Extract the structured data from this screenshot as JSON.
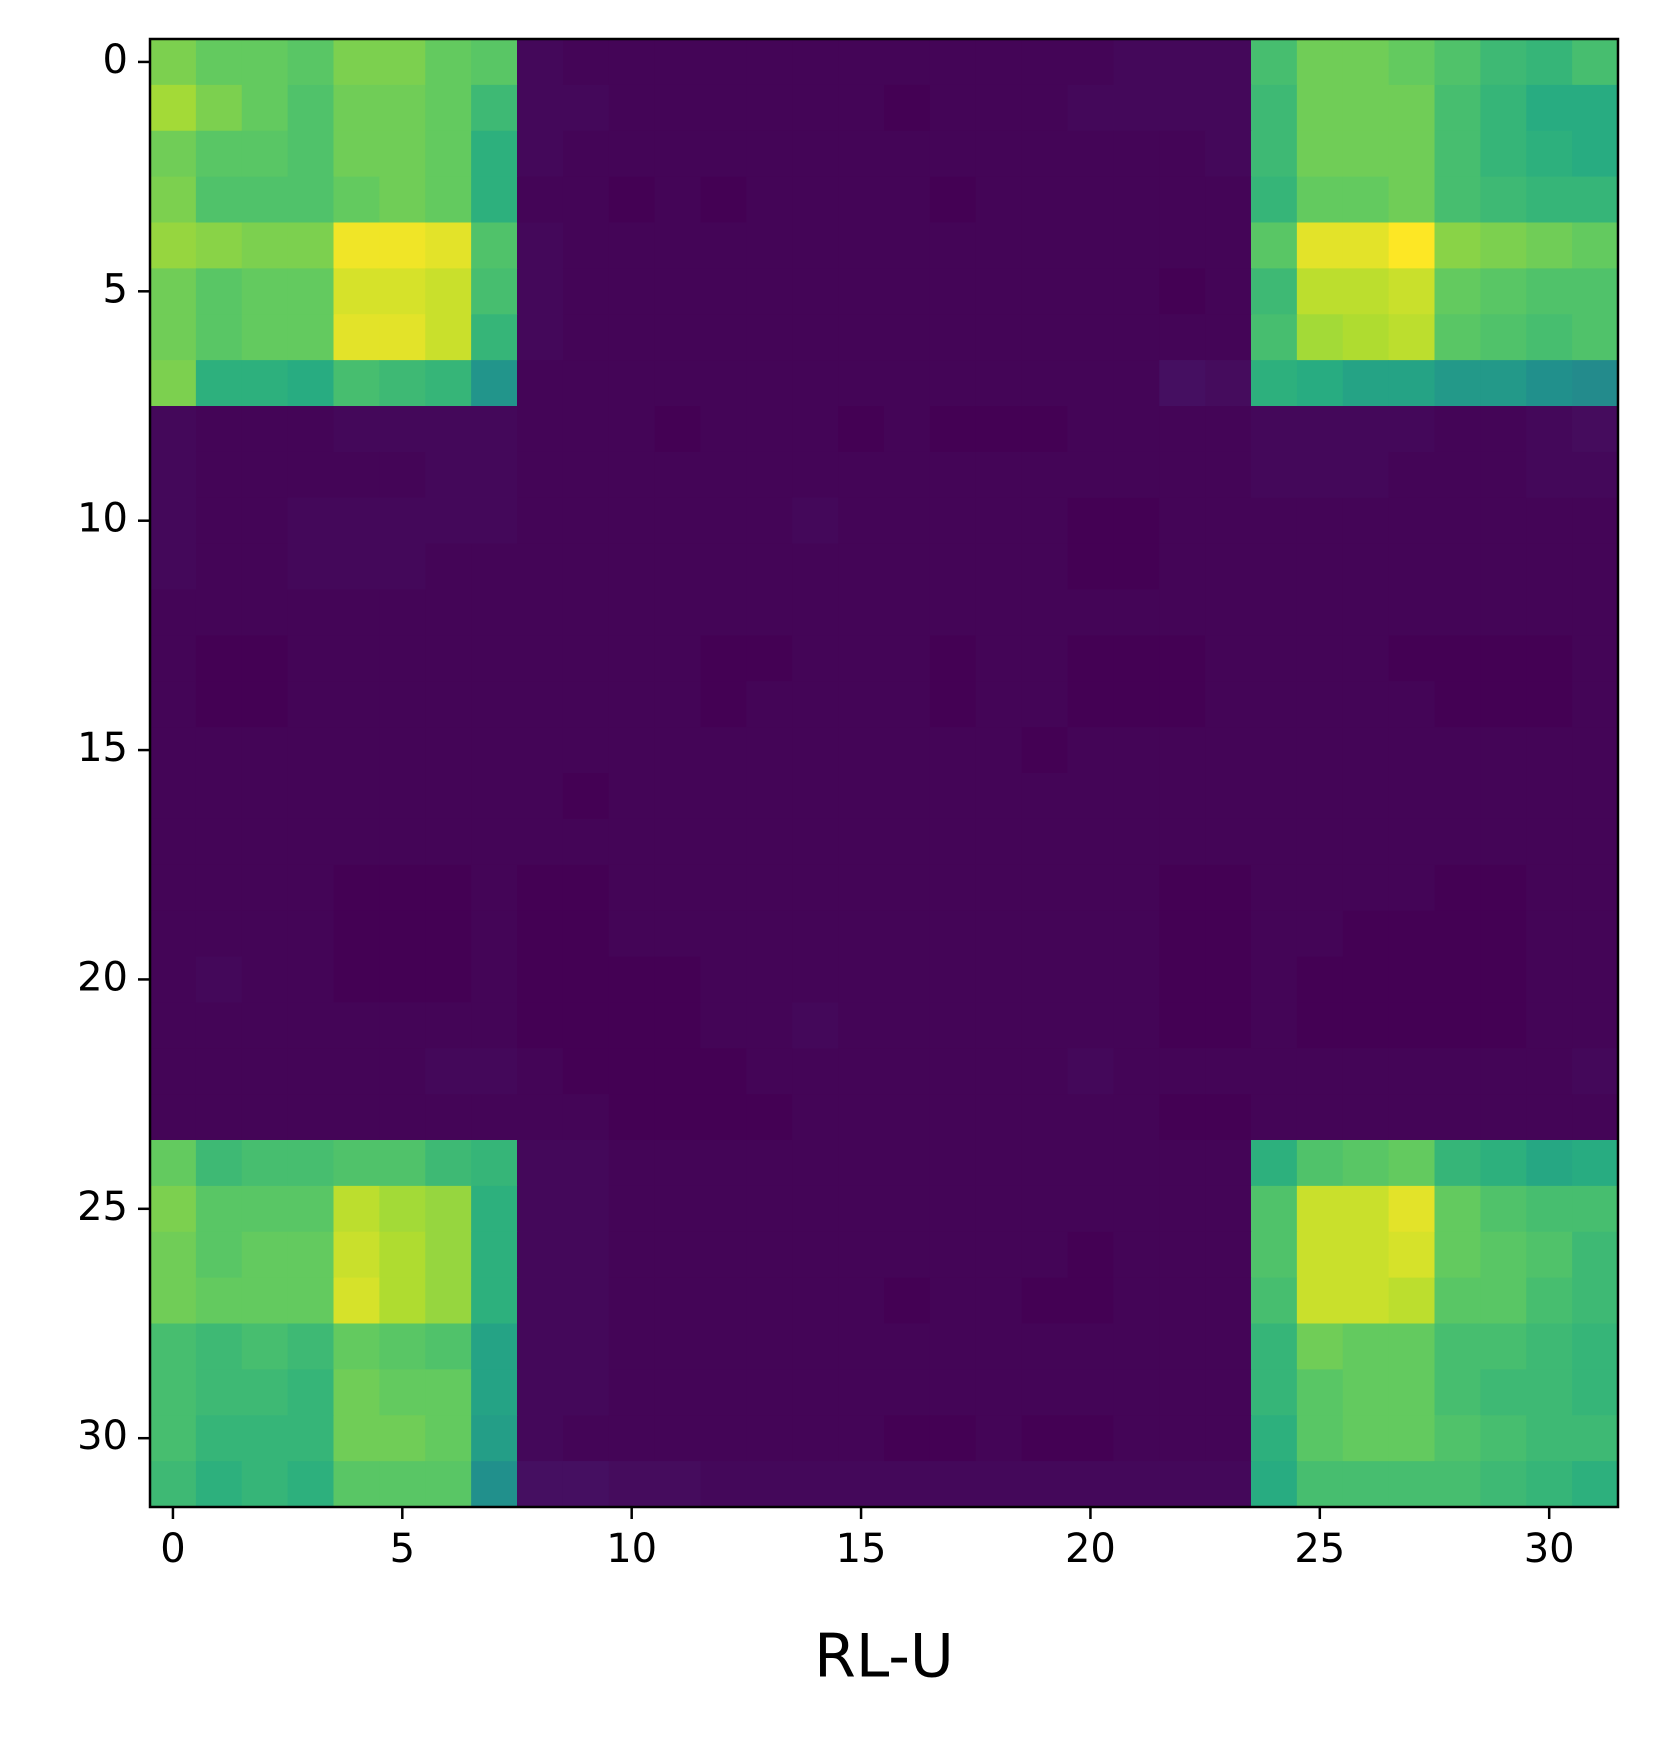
{
  "chart_data": {
    "type": "heatmap",
    "xlabel": "RL-U",
    "colormap": "viridis",
    "xlim": [
      -0.5,
      31.5
    ],
    "ylim": [
      31.5,
      -0.5
    ],
    "xticks": [
      0,
      5,
      10,
      15,
      20,
      25,
      30
    ],
    "yticks": [
      0,
      5,
      10,
      15,
      20,
      25,
      30
    ],
    "z": [
      [
        0.8,
        0.76,
        0.76,
        0.74,
        0.8,
        0.8,
        0.76,
        0.74,
        0.03,
        0.02,
        0.02,
        0.02,
        0.02,
        0.02,
        0.02,
        0.02,
        0.02,
        0.02,
        0.02,
        0.02,
        0.02,
        0.03,
        0.03,
        0.03,
        0.7,
        0.78,
        0.78,
        0.76,
        0.72,
        0.68,
        0.66,
        0.7
      ],
      [
        0.86,
        0.8,
        0.76,
        0.72,
        0.78,
        0.78,
        0.76,
        0.68,
        0.03,
        0.03,
        0.02,
        0.02,
        0.02,
        0.02,
        0.02,
        0.02,
        0.01,
        0.02,
        0.02,
        0.02,
        0.03,
        0.03,
        0.03,
        0.03,
        0.68,
        0.78,
        0.78,
        0.78,
        0.7,
        0.66,
        0.62,
        0.62
      ],
      [
        0.78,
        0.74,
        0.74,
        0.72,
        0.78,
        0.78,
        0.76,
        0.64,
        0.03,
        0.02,
        0.02,
        0.02,
        0.02,
        0.02,
        0.02,
        0.02,
        0.02,
        0.02,
        0.02,
        0.02,
        0.02,
        0.02,
        0.02,
        0.03,
        0.68,
        0.78,
        0.78,
        0.78,
        0.7,
        0.66,
        0.64,
        0.62
      ],
      [
        0.8,
        0.72,
        0.72,
        0.72,
        0.76,
        0.78,
        0.76,
        0.64,
        0.02,
        0.02,
        0.01,
        0.02,
        0.01,
        0.02,
        0.02,
        0.02,
        0.02,
        0.01,
        0.02,
        0.02,
        0.02,
        0.02,
        0.02,
        0.02,
        0.66,
        0.76,
        0.76,
        0.78,
        0.7,
        0.68,
        0.66,
        0.66
      ],
      [
        0.84,
        0.82,
        0.8,
        0.8,
        0.98,
        0.98,
        0.96,
        0.72,
        0.03,
        0.02,
        0.02,
        0.02,
        0.02,
        0.02,
        0.02,
        0.02,
        0.02,
        0.02,
        0.02,
        0.02,
        0.02,
        0.02,
        0.02,
        0.02,
        0.74,
        0.96,
        0.96,
        1.0,
        0.82,
        0.8,
        0.78,
        0.76
      ],
      [
        0.78,
        0.74,
        0.76,
        0.76,
        0.94,
        0.94,
        0.92,
        0.7,
        0.03,
        0.02,
        0.02,
        0.02,
        0.02,
        0.02,
        0.02,
        0.02,
        0.02,
        0.02,
        0.02,
        0.02,
        0.02,
        0.02,
        0.01,
        0.02,
        0.68,
        0.9,
        0.9,
        0.92,
        0.76,
        0.74,
        0.72,
        0.72
      ],
      [
        0.78,
        0.74,
        0.76,
        0.76,
        0.96,
        0.96,
        0.92,
        0.66,
        0.03,
        0.02,
        0.02,
        0.02,
        0.02,
        0.02,
        0.02,
        0.02,
        0.02,
        0.02,
        0.02,
        0.02,
        0.02,
        0.02,
        0.02,
        0.02,
        0.7,
        0.86,
        0.88,
        0.9,
        0.74,
        0.72,
        0.7,
        0.72
      ],
      [
        0.8,
        0.64,
        0.64,
        0.62,
        0.7,
        0.68,
        0.66,
        0.52,
        0.02,
        0.02,
        0.02,
        0.02,
        0.02,
        0.02,
        0.02,
        0.02,
        0.02,
        0.02,
        0.02,
        0.02,
        0.02,
        0.02,
        0.05,
        0.04,
        0.64,
        0.62,
        0.58,
        0.58,
        0.54,
        0.54,
        0.5,
        0.48
      ],
      [
        0.03,
        0.02,
        0.02,
        0.02,
        0.03,
        0.03,
        0.03,
        0.03,
        0.02,
        0.02,
        0.02,
        0.01,
        0.02,
        0.02,
        0.02,
        0.01,
        0.02,
        0.01,
        0.01,
        0.01,
        0.02,
        0.02,
        0.02,
        0.02,
        0.03,
        0.03,
        0.03,
        0.03,
        0.02,
        0.02,
        0.03,
        0.04
      ],
      [
        0.03,
        0.02,
        0.02,
        0.02,
        0.02,
        0.02,
        0.03,
        0.03,
        0.02,
        0.02,
        0.02,
        0.02,
        0.02,
        0.02,
        0.02,
        0.02,
        0.02,
        0.02,
        0.02,
        0.02,
        0.02,
        0.02,
        0.02,
        0.02,
        0.03,
        0.03,
        0.03,
        0.02,
        0.02,
        0.02,
        0.03,
        0.03
      ],
      [
        0.03,
        0.02,
        0.02,
        0.03,
        0.03,
        0.03,
        0.03,
        0.03,
        0.02,
        0.02,
        0.02,
        0.02,
        0.02,
        0.02,
        0.03,
        0.02,
        0.02,
        0.02,
        0.02,
        0.02,
        0.01,
        0.01,
        0.02,
        0.02,
        0.02,
        0.02,
        0.02,
        0.02,
        0.02,
        0.02,
        0.02,
        0.02
      ],
      [
        0.03,
        0.02,
        0.02,
        0.03,
        0.03,
        0.03,
        0.02,
        0.02,
        0.02,
        0.02,
        0.02,
        0.02,
        0.02,
        0.02,
        0.02,
        0.02,
        0.02,
        0.02,
        0.02,
        0.02,
        0.01,
        0.01,
        0.02,
        0.02,
        0.02,
        0.02,
        0.02,
        0.02,
        0.02,
        0.02,
        0.02,
        0.02
      ],
      [
        0.02,
        0.02,
        0.02,
        0.02,
        0.02,
        0.02,
        0.02,
        0.02,
        0.02,
        0.02,
        0.02,
        0.02,
        0.02,
        0.02,
        0.02,
        0.02,
        0.02,
        0.02,
        0.02,
        0.02,
        0.02,
        0.02,
        0.02,
        0.02,
        0.02,
        0.02,
        0.02,
        0.02,
        0.02,
        0.02,
        0.02,
        0.02
      ],
      [
        0.02,
        0.01,
        0.01,
        0.02,
        0.02,
        0.02,
        0.02,
        0.02,
        0.02,
        0.02,
        0.02,
        0.02,
        0.01,
        0.01,
        0.02,
        0.02,
        0.02,
        0.01,
        0.02,
        0.02,
        0.01,
        0.01,
        0.01,
        0.02,
        0.02,
        0.02,
        0.02,
        0.01,
        0.01,
        0.01,
        0.01,
        0.02
      ],
      [
        0.02,
        0.01,
        0.01,
        0.02,
        0.02,
        0.02,
        0.02,
        0.02,
        0.02,
        0.02,
        0.02,
        0.02,
        0.01,
        0.02,
        0.02,
        0.02,
        0.02,
        0.01,
        0.02,
        0.02,
        0.01,
        0.01,
        0.01,
        0.02,
        0.02,
        0.02,
        0.02,
        0.02,
        0.01,
        0.01,
        0.01,
        0.02
      ],
      [
        0.02,
        0.02,
        0.02,
        0.02,
        0.02,
        0.02,
        0.02,
        0.02,
        0.02,
        0.02,
        0.02,
        0.02,
        0.02,
        0.02,
        0.02,
        0.02,
        0.02,
        0.02,
        0.02,
        0.01,
        0.02,
        0.02,
        0.02,
        0.02,
        0.02,
        0.02,
        0.02,
        0.02,
        0.02,
        0.02,
        0.02,
        0.02
      ],
      [
        0.02,
        0.02,
        0.02,
        0.02,
        0.02,
        0.02,
        0.02,
        0.02,
        0.02,
        0.01,
        0.02,
        0.02,
        0.02,
        0.02,
        0.02,
        0.02,
        0.02,
        0.02,
        0.02,
        0.02,
        0.02,
        0.02,
        0.02,
        0.02,
        0.02,
        0.02,
        0.02,
        0.02,
        0.02,
        0.02,
        0.02,
        0.02
      ],
      [
        0.02,
        0.02,
        0.02,
        0.02,
        0.02,
        0.02,
        0.02,
        0.02,
        0.02,
        0.02,
        0.02,
        0.02,
        0.02,
        0.02,
        0.02,
        0.02,
        0.02,
        0.02,
        0.02,
        0.02,
        0.02,
        0.02,
        0.02,
        0.02,
        0.02,
        0.02,
        0.02,
        0.02,
        0.02,
        0.02,
        0.02,
        0.02
      ],
      [
        0.02,
        0.02,
        0.02,
        0.02,
        0.01,
        0.01,
        0.01,
        0.02,
        0.01,
        0.01,
        0.02,
        0.02,
        0.02,
        0.02,
        0.02,
        0.02,
        0.02,
        0.02,
        0.02,
        0.02,
        0.02,
        0.02,
        0.01,
        0.01,
        0.02,
        0.02,
        0.02,
        0.02,
        0.01,
        0.01,
        0.02,
        0.02
      ],
      [
        0.02,
        0.02,
        0.02,
        0.02,
        0.01,
        0.01,
        0.01,
        0.02,
        0.01,
        0.01,
        0.02,
        0.02,
        0.02,
        0.02,
        0.02,
        0.02,
        0.02,
        0.02,
        0.02,
        0.02,
        0.02,
        0.02,
        0.01,
        0.01,
        0.02,
        0.02,
        0.01,
        0.01,
        0.01,
        0.01,
        0.02,
        0.02
      ],
      [
        0.02,
        0.03,
        0.02,
        0.02,
        0.01,
        0.01,
        0.01,
        0.02,
        0.01,
        0.01,
        0.01,
        0.01,
        0.02,
        0.02,
        0.02,
        0.02,
        0.02,
        0.02,
        0.02,
        0.02,
        0.02,
        0.02,
        0.01,
        0.01,
        0.02,
        0.01,
        0.01,
        0.01,
        0.01,
        0.01,
        0.02,
        0.02
      ],
      [
        0.02,
        0.02,
        0.02,
        0.02,
        0.02,
        0.02,
        0.02,
        0.02,
        0.01,
        0.01,
        0.01,
        0.01,
        0.02,
        0.02,
        0.03,
        0.02,
        0.02,
        0.02,
        0.02,
        0.02,
        0.02,
        0.02,
        0.01,
        0.01,
        0.02,
        0.01,
        0.01,
        0.01,
        0.01,
        0.01,
        0.02,
        0.02
      ],
      [
        0.02,
        0.02,
        0.02,
        0.02,
        0.02,
        0.02,
        0.03,
        0.03,
        0.02,
        0.01,
        0.01,
        0.01,
        0.01,
        0.02,
        0.02,
        0.02,
        0.02,
        0.02,
        0.02,
        0.02,
        0.03,
        0.02,
        0.02,
        0.02,
        0.02,
        0.02,
        0.02,
        0.02,
        0.02,
        0.02,
        0.02,
        0.03
      ],
      [
        0.02,
        0.02,
        0.02,
        0.02,
        0.02,
        0.02,
        0.02,
        0.02,
        0.02,
        0.02,
        0.01,
        0.01,
        0.01,
        0.01,
        0.02,
        0.02,
        0.02,
        0.02,
        0.02,
        0.02,
        0.02,
        0.02,
        0.01,
        0.01,
        0.02,
        0.02,
        0.02,
        0.02,
        0.02,
        0.02,
        0.02,
        0.02
      ],
      [
        0.76,
        0.68,
        0.7,
        0.7,
        0.72,
        0.72,
        0.68,
        0.66,
        0.03,
        0.03,
        0.02,
        0.02,
        0.02,
        0.02,
        0.02,
        0.02,
        0.02,
        0.02,
        0.02,
        0.02,
        0.02,
        0.02,
        0.02,
        0.02,
        0.64,
        0.72,
        0.74,
        0.76,
        0.66,
        0.64,
        0.6,
        0.62
      ],
      [
        0.8,
        0.74,
        0.74,
        0.74,
        0.9,
        0.86,
        0.84,
        0.64,
        0.03,
        0.03,
        0.02,
        0.02,
        0.02,
        0.02,
        0.02,
        0.02,
        0.02,
        0.02,
        0.02,
        0.02,
        0.02,
        0.02,
        0.02,
        0.02,
        0.72,
        0.92,
        0.92,
        0.96,
        0.76,
        0.72,
        0.7,
        0.7
      ],
      [
        0.78,
        0.74,
        0.76,
        0.76,
        0.92,
        0.88,
        0.84,
        0.64,
        0.03,
        0.03,
        0.02,
        0.02,
        0.02,
        0.02,
        0.02,
        0.02,
        0.02,
        0.02,
        0.02,
        0.02,
        0.01,
        0.02,
        0.02,
        0.02,
        0.72,
        0.92,
        0.92,
        0.94,
        0.76,
        0.74,
        0.72,
        0.68
      ],
      [
        0.78,
        0.76,
        0.76,
        0.76,
        0.94,
        0.88,
        0.84,
        0.64,
        0.03,
        0.03,
        0.02,
        0.02,
        0.02,
        0.02,
        0.02,
        0.02,
        0.01,
        0.02,
        0.02,
        0.01,
        0.01,
        0.02,
        0.02,
        0.02,
        0.7,
        0.92,
        0.92,
        0.9,
        0.74,
        0.74,
        0.7,
        0.68
      ],
      [
        0.7,
        0.68,
        0.7,
        0.68,
        0.76,
        0.74,
        0.72,
        0.58,
        0.03,
        0.03,
        0.02,
        0.02,
        0.02,
        0.02,
        0.02,
        0.02,
        0.02,
        0.02,
        0.02,
        0.02,
        0.02,
        0.02,
        0.02,
        0.02,
        0.66,
        0.78,
        0.76,
        0.76,
        0.7,
        0.7,
        0.68,
        0.66
      ],
      [
        0.7,
        0.68,
        0.68,
        0.66,
        0.78,
        0.76,
        0.76,
        0.58,
        0.03,
        0.03,
        0.02,
        0.02,
        0.02,
        0.02,
        0.02,
        0.02,
        0.02,
        0.02,
        0.02,
        0.02,
        0.02,
        0.02,
        0.02,
        0.02,
        0.66,
        0.74,
        0.76,
        0.76,
        0.7,
        0.68,
        0.68,
        0.66
      ],
      [
        0.7,
        0.66,
        0.66,
        0.66,
        0.78,
        0.78,
        0.76,
        0.56,
        0.03,
        0.02,
        0.02,
        0.02,
        0.02,
        0.02,
        0.02,
        0.02,
        0.01,
        0.01,
        0.02,
        0.01,
        0.01,
        0.02,
        0.02,
        0.02,
        0.64,
        0.74,
        0.76,
        0.76,
        0.72,
        0.7,
        0.68,
        0.68
      ],
      [
        0.68,
        0.64,
        0.66,
        0.64,
        0.74,
        0.74,
        0.74,
        0.5,
        0.05,
        0.05,
        0.04,
        0.04,
        0.03,
        0.03,
        0.03,
        0.03,
        0.03,
        0.03,
        0.03,
        0.03,
        0.03,
        0.03,
        0.03,
        0.03,
        0.62,
        0.7,
        0.7,
        0.7,
        0.7,
        0.68,
        0.66,
        0.64
      ]
    ]
  }
}
